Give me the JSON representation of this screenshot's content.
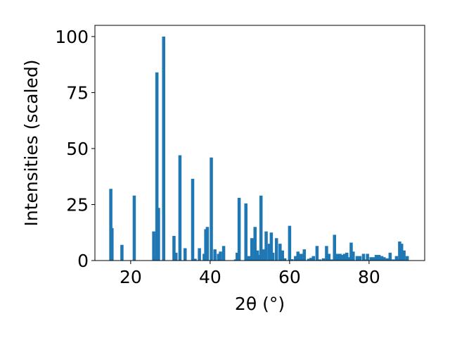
{
  "chart_data": {
    "type": "bar",
    "xlabel": "2θ (°)",
    "ylabel": "Intensities (scaled)",
    "xlim": [
      11,
      94
    ],
    "ylim": [
      0,
      105
    ],
    "xticks": [
      20,
      40,
      60,
      80
    ],
    "yticks": [
      0,
      25,
      50,
      75,
      100
    ],
    "grid": false,
    "bar_color": "#1f77b4",
    "bar_width": 0.8,
    "x": [
      15.0,
      15.3,
      17.8,
      20.9,
      25.8,
      26.0,
      26.6,
      27.0,
      28.3,
      30.9,
      31.4,
      32.4,
      33.7,
      35.6,
      36.2,
      37.3,
      38.5,
      38.9,
      39.3,
      40.3,
      41.2,
      42.1,
      42.6,
      43.4,
      46.4,
      46.8,
      47.3,
      49.0,
      49.8,
      50.5,
      51.3,
      51.9,
      52.3,
      52.8,
      53.4,
      54.1,
      54.9,
      55.4,
      55.8,
      56.7,
      57.6,
      58.2,
      58.8,
      60.0,
      60.6,
      61.5,
      62.1,
      62.9,
      63.7,
      64.8,
      65.4,
      66.0,
      66.9,
      67.6,
      68.5,
      69.3,
      69.9,
      70.7,
      71.3,
      72.0,
      72.7,
      73.2,
      73.8,
      74.4,
      75.0,
      75.5,
      76.0,
      77.0,
      77.7,
      78.6,
      79.1,
      79.6,
      80.5,
      81.1,
      81.8,
      82.5,
      83.2,
      83.8,
      84.6,
      85.3,
      86.1,
      86.9,
      87.7,
      88.2,
      88.8,
      89.6
    ],
    "values": [
      32,
      14.5,
      7,
      29,
      13,
      2,
      84,
      23.5,
      100,
      11,
      3.5,
      47,
      5.5,
      36.5,
      0.8,
      5.5,
      3,
      14,
      15,
      46,
      5,
      3,
      4,
      6.5,
      0.5,
      3.5,
      28,
      25.5,
      2,
      10,
      15,
      4.5,
      2.5,
      29,
      5,
      13,
      7.5,
      12.5,
      3.5,
      10,
      7.5,
      4.5,
      1,
      15.5,
      0.6,
      2,
      4,
      3,
      5,
      0.8,
      1.2,
      2,
      6.5,
      0.5,
      1,
      6.5,
      3,
      0.5,
      11.5,
      3,
      3,
      2.5,
      3,
      3.5,
      1.5,
      8,
      4,
      2,
      2,
      3,
      0.5,
      3,
      1.5,
      1.5,
      2.5,
      2.5,
      2,
      1.5,
      1,
      3.5,
      0.5,
      2,
      8.5,
      7.5,
      4.5,
      2
    ]
  }
}
